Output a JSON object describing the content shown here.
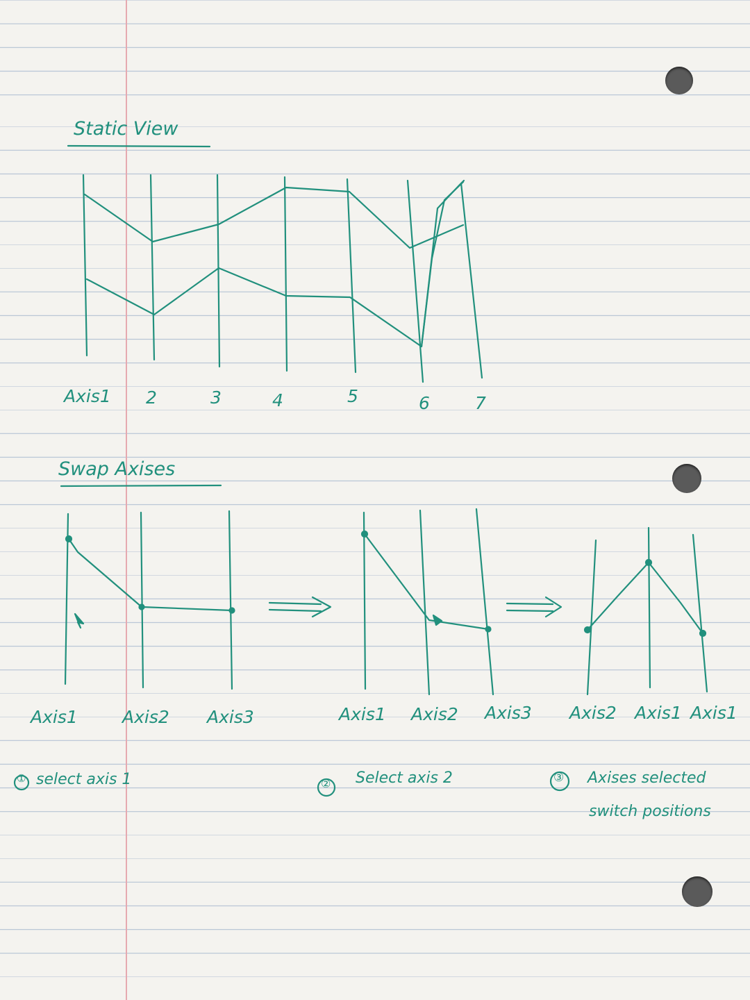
{
  "ink_color": "#21907d",
  "static_view": {
    "heading": "Static View",
    "axis_labels": [
      "Axis1",
      "2",
      "3",
      "4",
      "5",
      "6",
      "7"
    ]
  },
  "swap_axises": {
    "heading": "Swap Axises",
    "arrow": "⟹",
    "panels": [
      {
        "axis_labels": [
          "Axis1",
          "Axis2",
          "Axis3"
        ],
        "step": "①",
        "caption": "select axis 1"
      },
      {
        "axis_labels": [
          "Axis1",
          "Axis2",
          "Axis3"
        ],
        "step": "②",
        "caption": "Select axis 2"
      },
      {
        "axis_labels": [
          "Axis2",
          "Axis1",
          "Axis1"
        ],
        "step": "③",
        "caption": "Axises selected",
        "caption_line2": "switch positions"
      }
    ]
  }
}
